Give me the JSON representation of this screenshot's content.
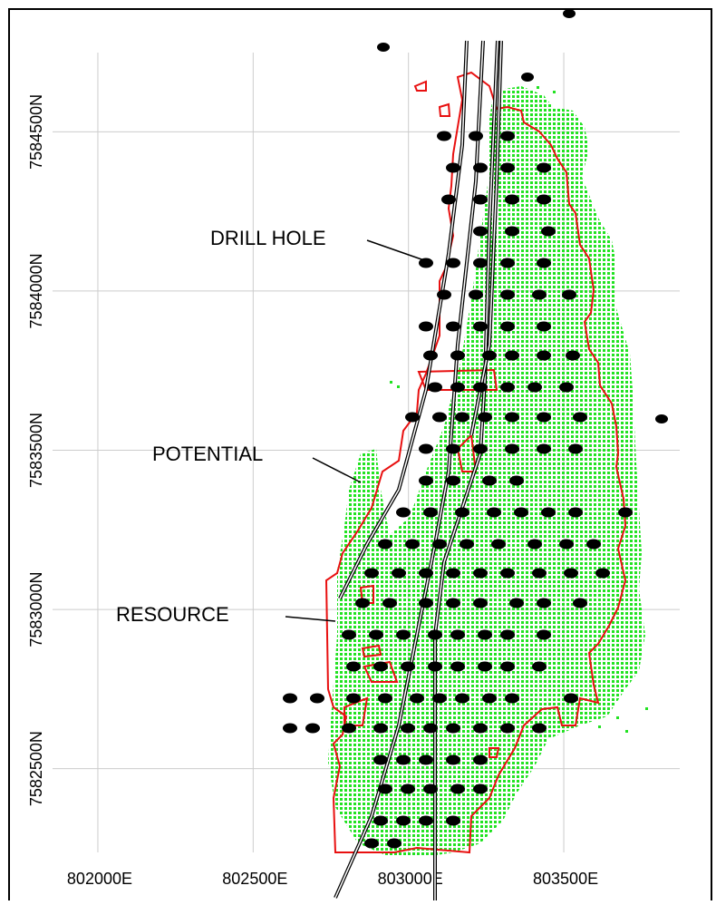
{
  "colors": {
    "background": "#ffffff",
    "grid": "#cccccc",
    "frame": "#000000",
    "resource": "#e81010",
    "potential": "#22e222",
    "drillhole": "#000000",
    "road": "#000000"
  },
  "map": {
    "easting_range": [
      801685,
      803990
    ],
    "northing_range": [
      7582086,
      7584914
    ],
    "easting_ticks": [
      {
        "value": 802000,
        "label": "802000E"
      },
      {
        "value": 802500,
        "label": "802500E"
      },
      {
        "value": 803000,
        "label": "803000E"
      },
      {
        "value": 803500,
        "label": "803500E"
      }
    ],
    "northing_ticks": [
      {
        "value": 7582500,
        "label": "7582500N"
      },
      {
        "value": 7583000,
        "label": "7583000N"
      },
      {
        "value": 7583500,
        "label": "7583500N"
      },
      {
        "value": 7584000,
        "label": "7584000N"
      },
      {
        "value": 7584500,
        "label": "7584500N"
      }
    ],
    "grid": true
  },
  "annotations": [
    {
      "label": "DRILL HOLE",
      "target": "drill-hole"
    },
    {
      "label": "POTENTIAL",
      "target": "potential-zone"
    },
    {
      "label": "RESOURCE",
      "target": "resource-outline"
    }
  ]
}
